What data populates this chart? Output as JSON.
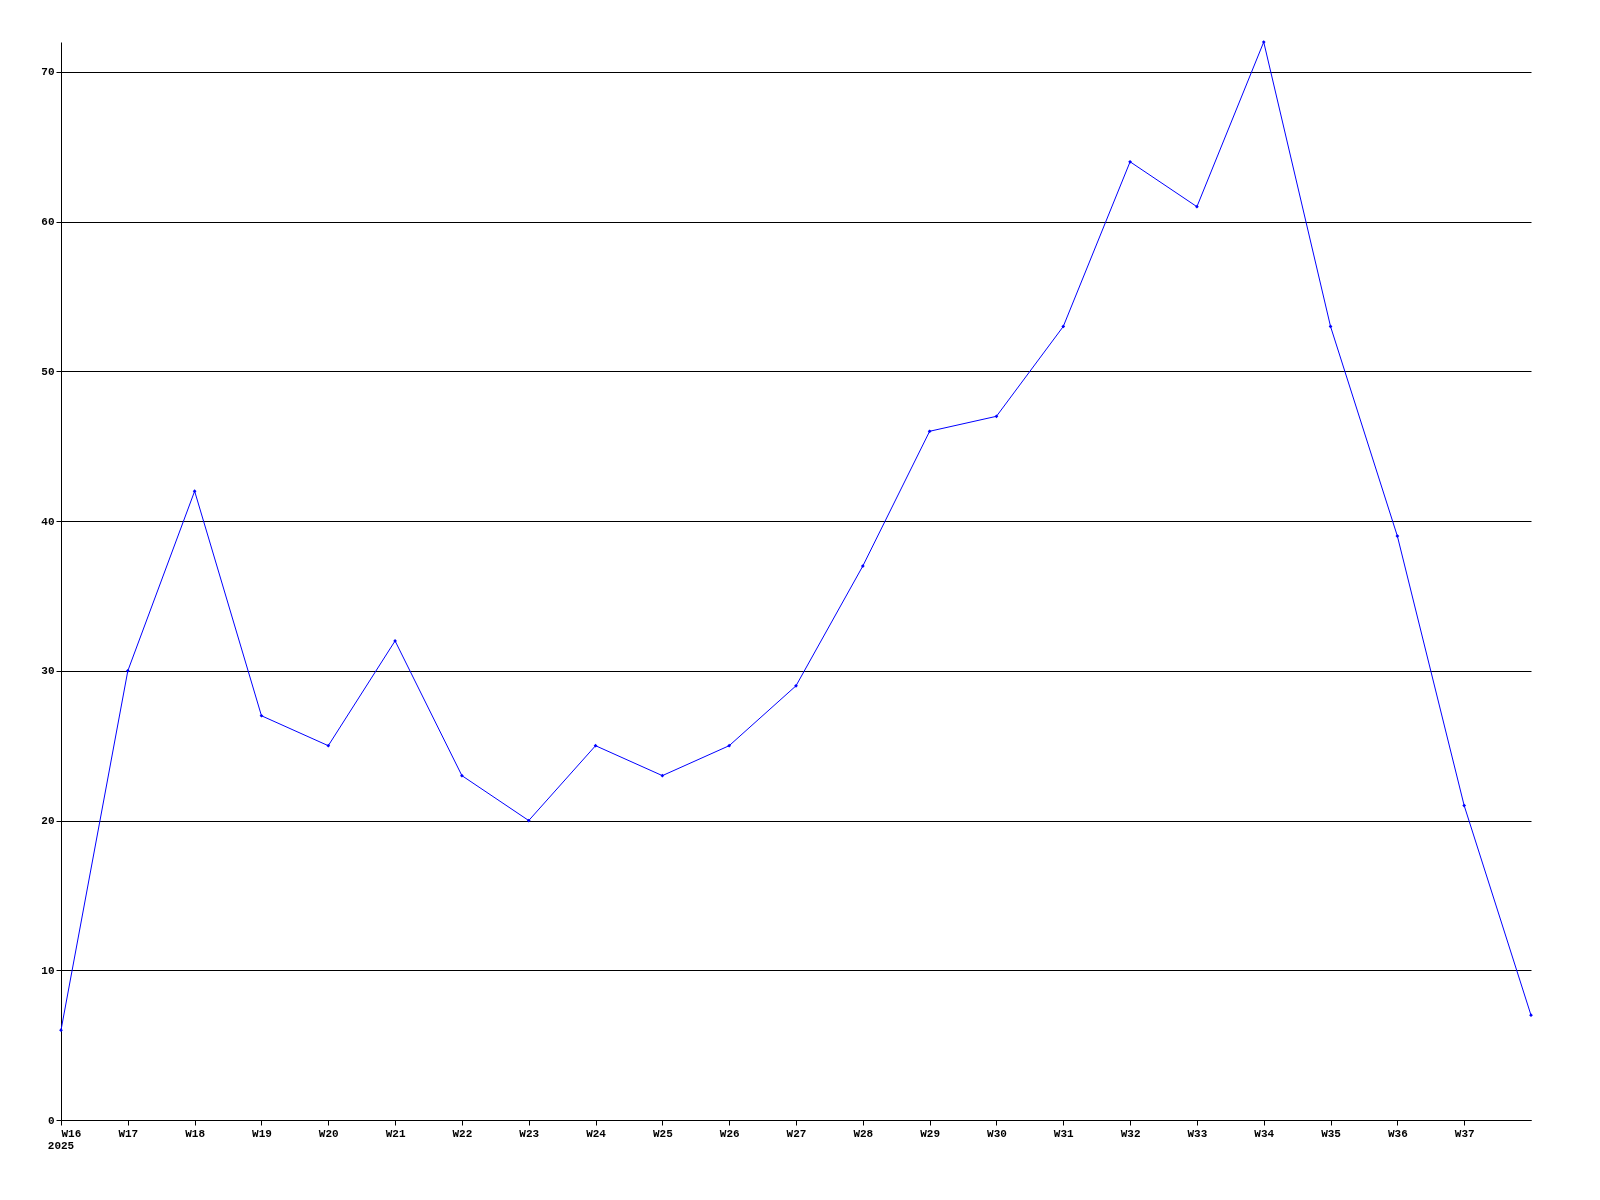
{
  "chart_data": {
    "type": "line",
    "categories": [
      "W16",
      "W17",
      "W18",
      "W19",
      "W20",
      "W21",
      "W22",
      "W23",
      "W24",
      "W25",
      "W26",
      "W27",
      "W28",
      "W29",
      "W30",
      "W31",
      "W32",
      "W33",
      "W34",
      "W35",
      "W36",
      "W37",
      null
    ],
    "series": [
      {
        "color": "#0000ff",
        "values": [
          6,
          30,
          42,
          27,
          25,
          32,
          23,
          20,
          25,
          23,
          25,
          29,
          37,
          46,
          47,
          53,
          64,
          61,
          72,
          53,
          39,
          21,
          7
        ]
      }
    ],
    "ylim": [
      0,
      72
    ],
    "yticks": [
      0,
      10,
      20,
      30,
      40,
      50,
      60,
      70
    ],
    "annotations": [
      "2025"
    ],
    "grid": "y",
    "marker": "diamond",
    "line_style": "solid"
  }
}
